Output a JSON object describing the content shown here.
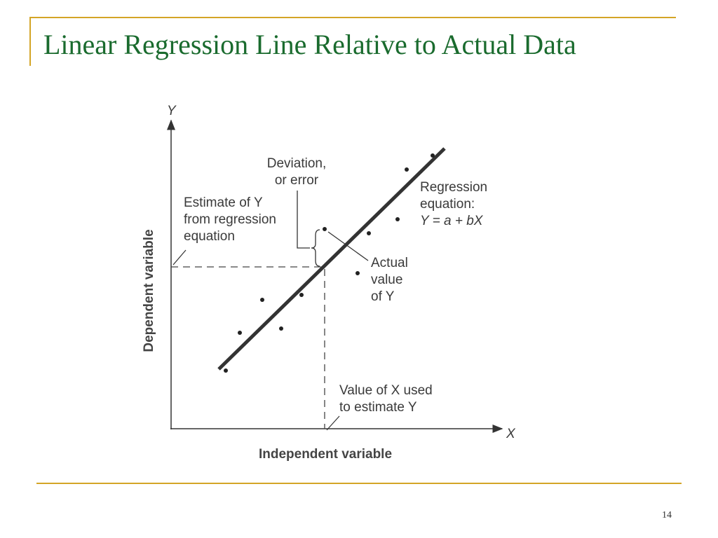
{
  "slide": {
    "title": "Linear Regression Line Relative to Actual Data",
    "page_number": "14",
    "accent_color": "#d4a526",
    "title_color": "#1a6b2e"
  },
  "diagram": {
    "y_axis_symbol": "Y",
    "x_axis_symbol": "X",
    "y_axis_label": "Dependent variable",
    "x_axis_label": "Independent variable",
    "deviation_label": [
      "Deviation,",
      "or error"
    ],
    "estimate_label": [
      "Estimate of Y",
      "from regression",
      "equation"
    ],
    "regression_label": [
      "Regression",
      "equation:",
      "Y = a + bX"
    ],
    "actual_label": [
      "Actual",
      "value",
      "of Y"
    ],
    "x_value_label": [
      "Value of X used",
      "to estimate Y"
    ]
  }
}
